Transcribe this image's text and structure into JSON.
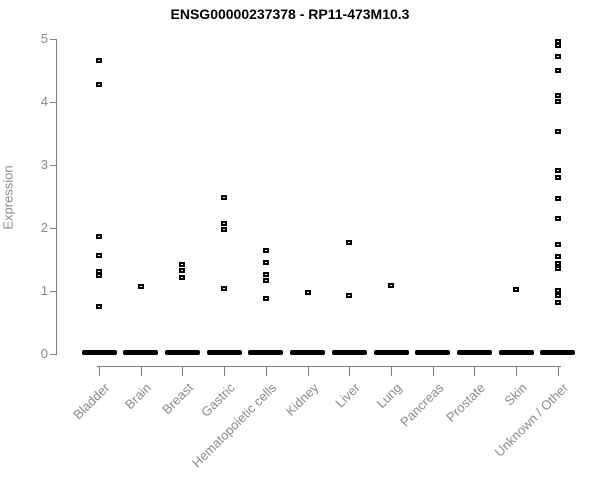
{
  "colors": {
    "marker": "#000000",
    "axis": "#808080",
    "axis_text": "#8a8a8a",
    "title_text": "#000000",
    "background": "#ffffff"
  },
  "chart_data": {
    "type": "scatter",
    "variant": "strip-plot-by-category",
    "title": "ENSG00000237378 - RP11-473M10.3",
    "xlabel": "",
    "ylabel": "Expression",
    "ylim": [
      0,
      5
    ],
    "yticks": [
      0,
      1,
      2,
      3,
      4,
      5
    ],
    "grid": false,
    "legend": false,
    "categories": [
      "Bladder",
      "Brain",
      "Breast",
      "Gastric",
      "Hematopoietic cells",
      "Kidney",
      "Liver",
      "Lung",
      "Pancreas",
      "Prostate",
      "Skin",
      "Unknown / Other"
    ],
    "series": [
      {
        "name": "Bladder",
        "zero_cluster": true,
        "values": [
          4.67,
          4.29,
          1.87,
          1.57,
          1.32,
          1.25,
          0.76
        ]
      },
      {
        "name": "Brain",
        "zero_cluster": true,
        "values": [
          1.08
        ]
      },
      {
        "name": "Breast",
        "zero_cluster": true,
        "values": [
          1.43,
          1.33,
          1.22
        ]
      },
      {
        "name": "Gastric",
        "zero_cluster": true,
        "values": [
          2.49,
          2.08,
          1.98,
          1.05
        ]
      },
      {
        "name": "Hematopoietic cells",
        "zero_cluster": true,
        "values": [
          1.65,
          1.46,
          1.27,
          1.17,
          0.89
        ]
      },
      {
        "name": "Kidney",
        "zero_cluster": true,
        "values": [
          0.98
        ]
      },
      {
        "name": "Liver",
        "zero_cluster": true,
        "values": [
          1.78,
          0.94
        ]
      },
      {
        "name": "Lung",
        "zero_cluster": true,
        "values": [
          1.1
        ]
      },
      {
        "name": "Pancreas",
        "zero_cluster": true,
        "values": []
      },
      {
        "name": "Prostate",
        "zero_cluster": true,
        "values": []
      },
      {
        "name": "Skin",
        "zero_cluster": true,
        "values": [
          1.03
        ]
      },
      {
        "name": "Unknown / Other",
        "zero_cluster": true,
        "values": [
          4.97,
          4.9,
          4.73,
          4.51,
          4.11,
          4.02,
          3.54,
          2.92,
          2.81,
          2.47,
          2.16,
          1.75,
          1.56,
          1.44,
          1.37,
          1.02,
          0.94,
          0.83
        ]
      }
    ]
  }
}
